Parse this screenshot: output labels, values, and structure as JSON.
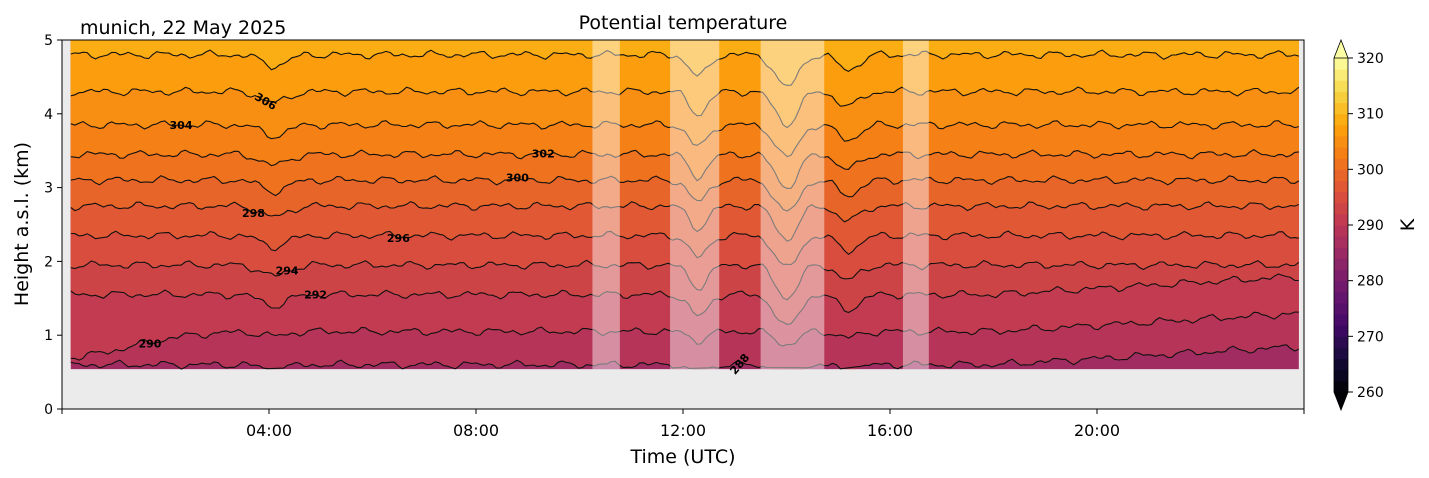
{
  "header": {
    "location_date": "munich, 22 May 2025"
  },
  "chart_data": {
    "type": "heatmap",
    "title": "Potential temperature",
    "xlabel": "Time (UTC)",
    "ylabel": "Height a.s.l. (km)",
    "colorbar_label": "K",
    "xlim_hours": [
      0,
      24
    ],
    "ylim_km": [
      0,
      5
    ],
    "x_ticks": [
      {
        "hour": 4,
        "label": "04:00"
      },
      {
        "hour": 8,
        "label": "08:00"
      },
      {
        "hour": 12,
        "label": "12:00"
      },
      {
        "hour": 16,
        "label": "16:00"
      },
      {
        "hour": 20,
        "label": "20:00"
      }
    ],
    "y_ticks": [
      {
        "km": 0,
        "label": "0"
      },
      {
        "km": 1,
        "label": "1"
      },
      {
        "km": 2,
        "label": "2"
      },
      {
        "km": 3,
        "label": "3"
      },
      {
        "km": 4,
        "label": "4"
      },
      {
        "km": 5,
        "label": "5"
      }
    ],
    "colorbar_ticks": [
      {
        "value": 260,
        "label": "260"
      },
      {
        "value": 270,
        "label": "270"
      },
      {
        "value": 280,
        "label": "280"
      },
      {
        "value": 290,
        "label": "290"
      },
      {
        "value": 300,
        "label": "300"
      },
      {
        "value": 310,
        "label": "310"
      },
      {
        "value": 320,
        "label": "320"
      }
    ],
    "colorbar_range": [
      260,
      320
    ],
    "colormap": "inferno",
    "data_bottom_km": 0.54,
    "contours": [
      {
        "level": 288,
        "base_km": 0.6,
        "label": "288",
        "label_hour": 13.15
      },
      {
        "level": 290,
        "base_km": 1.05,
        "label": "290",
        "label_hour": 1.7
      },
      {
        "level": 292,
        "base_km": 1.55,
        "label": "292",
        "label_hour": 4.9
      },
      {
        "level": 294,
        "base_km": 1.95,
        "label": "294",
        "label_hour": 4.35
      },
      {
        "level": 296,
        "base_km": 2.35,
        "label": "296",
        "label_hour": 6.5
      },
      {
        "level": 298,
        "base_km": 2.75,
        "label": "298",
        "label_hour": 3.7
      },
      {
        "level": 300,
        "base_km": 3.1,
        "label": "300",
        "label_hour": 8.8
      },
      {
        "level": 302,
        "base_km": 3.45,
        "label": "302",
        "label_hour": 9.3
      },
      {
        "level": 304,
        "base_km": 3.85,
        "label": "304",
        "label_hour": 2.3
      },
      {
        "level": 306,
        "base_km": 4.3,
        "label": "306",
        "label_hour": 3.9
      },
      {
        "level": 308,
        "base_km": 4.8,
        "label": "",
        "label_hour": null
      }
    ],
    "masked_intervals_hours": [
      [
        10.25,
        10.78
      ],
      [
        11.75,
        12.7
      ],
      [
        13.5,
        14.73
      ],
      [
        16.25,
        16.75
      ]
    ]
  }
}
